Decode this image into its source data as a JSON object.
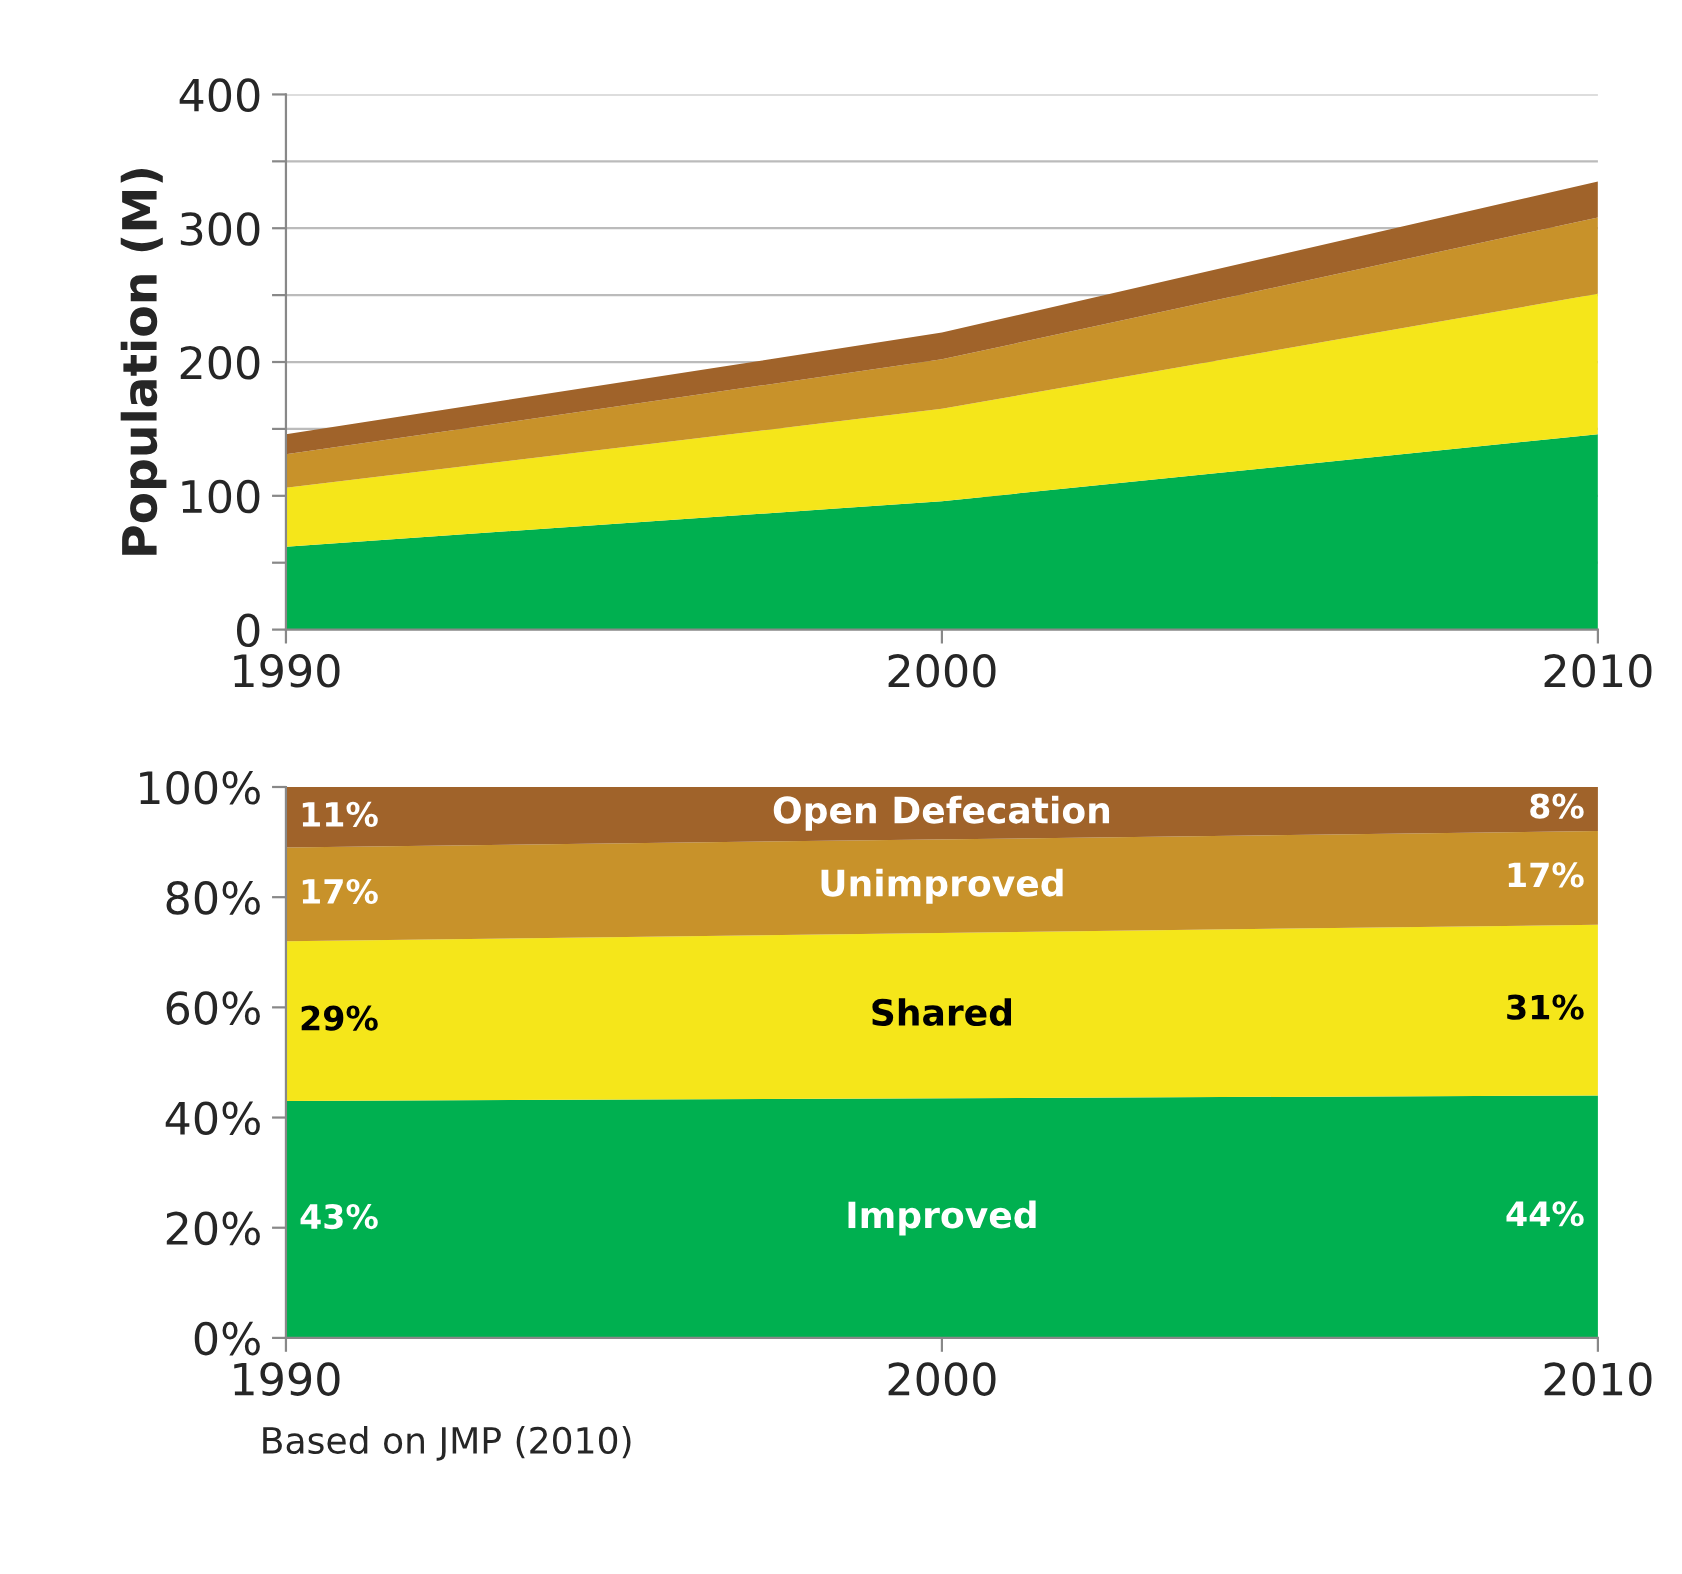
{
  "chart_data": [
    {
      "type": "area",
      "stacked": true,
      "ylabel": "Population (M)",
      "x": [
        1990,
        2000,
        2010
      ],
      "xlim": [
        1990,
        2010
      ],
      "xticks": [
        1990,
        2000,
        2010
      ],
      "ylim": [
        0,
        400
      ],
      "yticks": [
        0,
        {
          "value": 50,
          "label": null
        },
        100,
        {
          "value": 150,
          "label": null
        },
        200,
        {
          "value": 250,
          "label": null
        },
        300,
        {
          "value": 350,
          "label": null
        },
        400
      ],
      "grid": "y",
      "series": [
        {
          "color": "#00b050",
          "values": [
            62,
            96,
            146
          ]
        },
        {
          "color": "#f5e61a",
          "values": [
            44,
            69,
            105
          ]
        },
        {
          "color": "#c8922a",
          "values": [
            25,
            37,
            57
          ]
        },
        {
          "color": "#a0632a",
          "values": [
            15,
            20,
            27
          ]
        }
      ]
    },
    {
      "type": "area",
      "stacked": true,
      "x": [
        1990,
        2010
      ],
      "xlim": [
        1990,
        2010
      ],
      "xticks": [
        1990,
        2000,
        2010
      ],
      "ylim": [
        0,
        100
      ],
      "yticks": [
        {
          "value": 0,
          "label": "0%"
        },
        {
          "value": 20,
          "label": "20%"
        },
        {
          "value": 40,
          "label": "40%"
        },
        {
          "value": 60,
          "label": "60%"
        },
        {
          "value": 80,
          "label": "80%"
        },
        {
          "value": 100,
          "label": "100%"
        }
      ],
      "grid": false,
      "annotations": [
        "Based on JMP (2010)"
      ],
      "series": [
        {
          "name": "Improved",
          "color": "#00b050",
          "values": [
            43,
            44
          ],
          "value_labels": [
            "43%",
            "44%"
          ]
        },
        {
          "name": "Shared",
          "color": "#f5e61a",
          "values": [
            29,
            31
          ],
          "value_labels": [
            "29%",
            "31%"
          ]
        },
        {
          "name": "Unimproved",
          "color": "#c8922a",
          "values": [
            17,
            17
          ],
          "value_labels": [
            "17%",
            "17%"
          ]
        },
        {
          "name": "Open Defecation",
          "color": "#a0632a",
          "values": [
            11,
            8
          ],
          "value_labels": [
            "11%",
            "8%"
          ]
        }
      ]
    }
  ]
}
